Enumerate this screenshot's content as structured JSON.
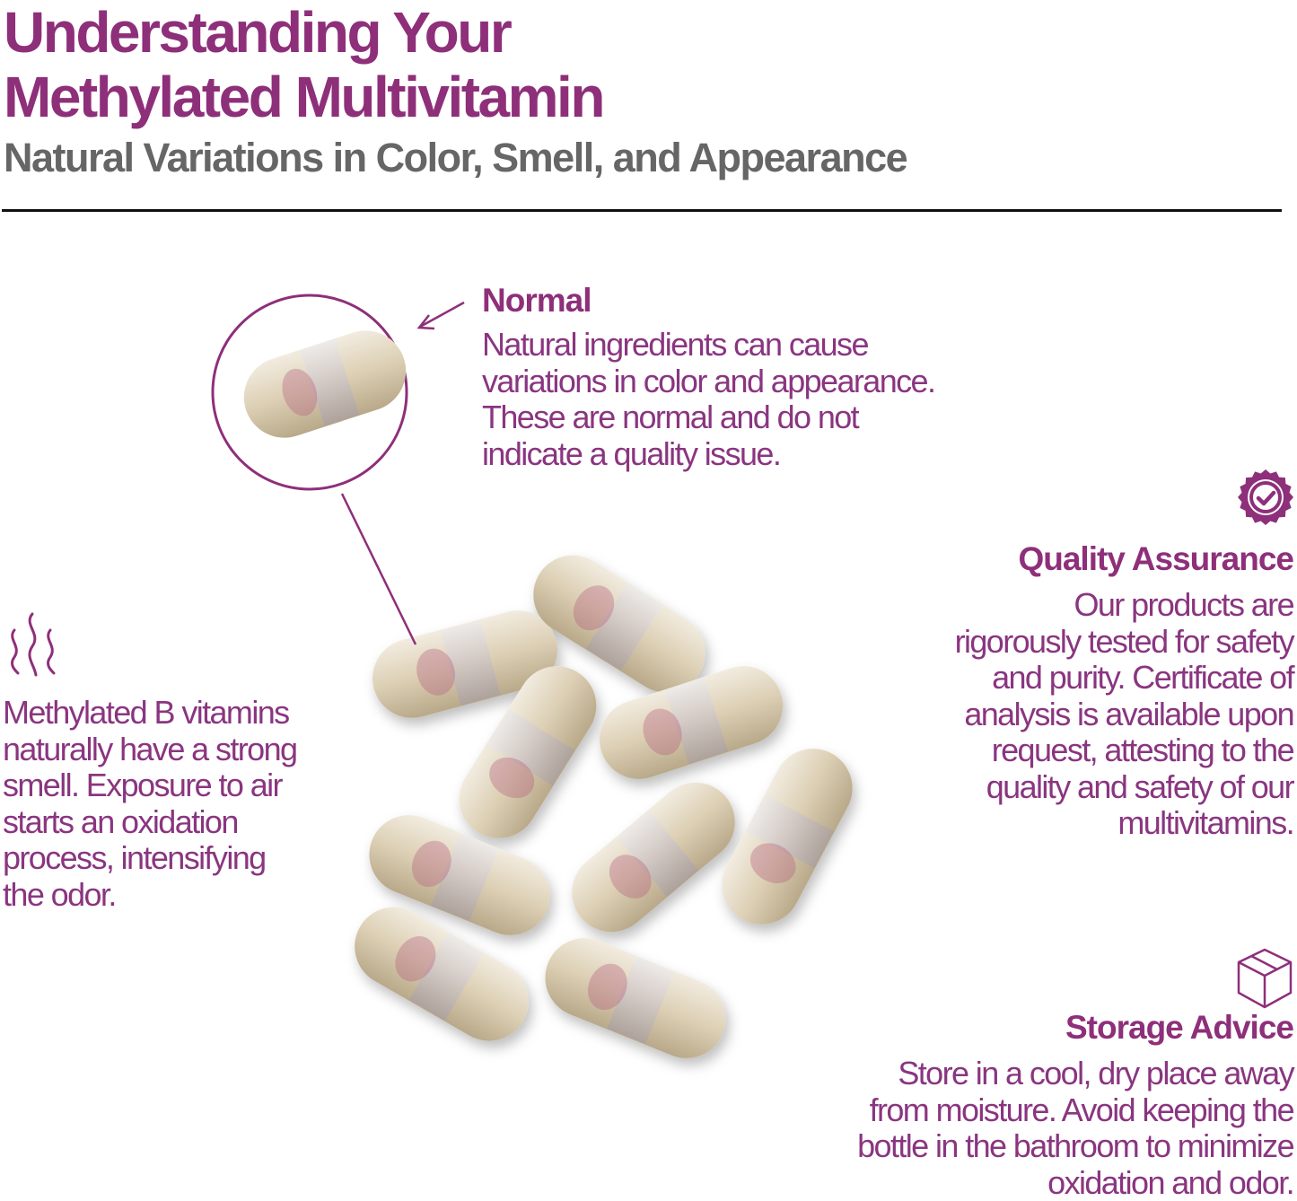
{
  "header": {
    "title_line1": "Understanding Your",
    "title_line2": "Methylated Multivitamin",
    "subtitle": "Natural Variations in Color, Smell, and Appearance"
  },
  "colors": {
    "accent": "#8e2f7a",
    "subtitle": "#666666",
    "capsule": "#e3d6bd",
    "capsule_fill": "#b35a7a"
  },
  "normal": {
    "heading": "Normal",
    "lines": [
      "Natural ingredients can cause",
      "variations in color and appearance.",
      "These are normal and do not",
      "indicate a quality issue."
    ]
  },
  "smell": {
    "icon": "smell-waves-icon",
    "lines": [
      "Methylated B vitamins",
      "naturally have a strong",
      "smell. Exposure to air",
      "starts an oxidation",
      "process, intensifying",
      "the odor."
    ]
  },
  "quality": {
    "icon": "badge-check-icon",
    "heading": "Quality Assurance",
    "lines": [
      "Our products are",
      "rigorously tested for safety",
      "and purity. Certificate of",
      "analysis is available upon",
      "request, attesting to the",
      "quality and safety of our",
      "multivitamins."
    ]
  },
  "storage": {
    "icon": "box-icon",
    "heading": "Storage Advice",
    "lines": [
      "Store in a cool, dry place away",
      "from moisture. Avoid keeping the",
      "bottle in the bathroom to minimize",
      "oxidation and odor."
    ]
  }
}
